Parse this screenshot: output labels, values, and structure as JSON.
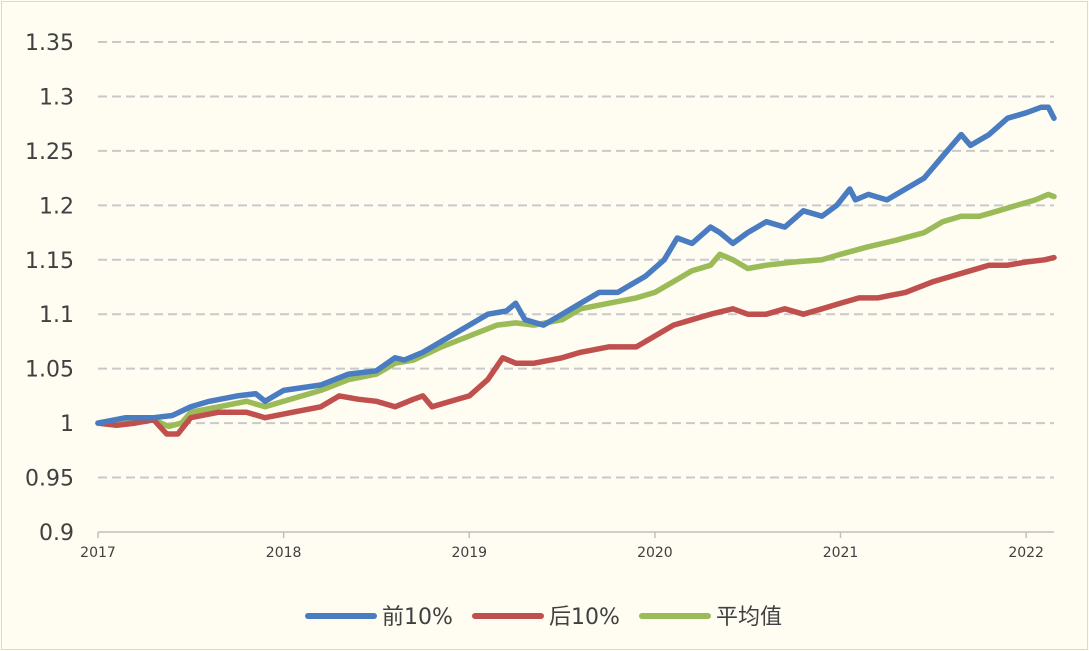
{
  "chart_data": {
    "type": "line",
    "title": "",
    "xlabel": "",
    "ylabel": "",
    "ylim": [
      0.9,
      1.35
    ],
    "yticks": [
      "0.9",
      "0.95",
      "1",
      "1.05",
      "1.1",
      "1.15",
      "1.2",
      "1.25",
      "1.3",
      "1.35"
    ],
    "xlim": [
      2017.0,
      2022.15
    ],
    "xticks": [
      "2017",
      "2018",
      "2019",
      "2020",
      "2021",
      "2022"
    ],
    "grid": "horizontal dashed",
    "legend_position": "bottom",
    "series": [
      {
        "name": "前10%",
        "color": "#4a7cc2",
        "x": [
          2017.0,
          2017.15,
          2017.3,
          2017.4,
          2017.5,
          2017.6,
          2017.75,
          2017.85,
          2017.9,
          2018.0,
          2018.2,
          2018.35,
          2018.5,
          2018.6,
          2018.65,
          2018.75,
          2018.9,
          2019.0,
          2019.1,
          2019.2,
          2019.25,
          2019.3,
          2019.4,
          2019.5,
          2019.6,
          2019.7,
          2019.8,
          2019.95,
          2020.05,
          2020.12,
          2020.2,
          2020.3,
          2020.35,
          2020.42,
          2020.5,
          2020.6,
          2020.7,
          2020.8,
          2020.9,
          2020.98,
          2021.05,
          2021.08,
          2021.15,
          2021.25,
          2021.35,
          2021.45,
          2021.55,
          2021.65,
          2021.7,
          2021.8,
          2021.9,
          2022.0,
          2022.08,
          2022.12,
          2022.15
        ],
        "y": [
          1.0,
          1.005,
          1.005,
          1.007,
          1.015,
          1.02,
          1.025,
          1.027,
          1.02,
          1.03,
          1.035,
          1.045,
          1.048,
          1.06,
          1.058,
          1.065,
          1.08,
          1.09,
          1.1,
          1.103,
          1.11,
          1.095,
          1.09,
          1.1,
          1.11,
          1.12,
          1.12,
          1.135,
          1.15,
          1.17,
          1.165,
          1.18,
          1.175,
          1.165,
          1.175,
          1.185,
          1.18,
          1.195,
          1.19,
          1.2,
          1.215,
          1.205,
          1.21,
          1.205,
          1.215,
          1.225,
          1.245,
          1.265,
          1.255,
          1.265,
          1.28,
          1.285,
          1.29,
          1.29,
          1.28
        ]
      },
      {
        "name": "后10%",
        "color": "#c0504d",
        "x": [
          2017.0,
          2017.1,
          2017.2,
          2017.3,
          2017.37,
          2017.43,
          2017.5,
          2017.65,
          2017.8,
          2017.9,
          2018.05,
          2018.2,
          2018.3,
          2018.4,
          2018.5,
          2018.6,
          2018.7,
          2018.75,
          2018.8,
          2018.9,
          2019.0,
          2019.1,
          2019.18,
          2019.25,
          2019.35,
          2019.5,
          2019.6,
          2019.75,
          2019.9,
          2020.0,
          2020.1,
          2020.2,
          2020.3,
          2020.42,
          2020.5,
          2020.6,
          2020.7,
          2020.8,
          2020.9,
          2021.0,
          2021.1,
          2021.2,
          2021.35,
          2021.5,
          2021.6,
          2021.7,
          2021.8,
          2021.9,
          2022.0,
          2022.1,
          2022.15
        ],
        "y": [
          1.0,
          0.998,
          1.0,
          1.003,
          0.99,
          0.99,
          1.005,
          1.01,
          1.01,
          1.005,
          1.01,
          1.015,
          1.025,
          1.022,
          1.02,
          1.015,
          1.022,
          1.025,
          1.015,
          1.02,
          1.025,
          1.04,
          1.06,
          1.055,
          1.055,
          1.06,
          1.065,
          1.07,
          1.07,
          1.08,
          1.09,
          1.095,
          1.1,
          1.105,
          1.1,
          1.1,
          1.105,
          1.1,
          1.105,
          1.11,
          1.115,
          1.115,
          1.12,
          1.13,
          1.135,
          1.14,
          1.145,
          1.145,
          1.148,
          1.15,
          1.152
        ]
      },
      {
        "name": "平均值",
        "color": "#9bbb59",
        "x": [
          2017.0,
          2017.1,
          2017.2,
          2017.3,
          2017.38,
          2017.45,
          2017.5,
          2017.65,
          2017.8,
          2017.9,
          2018.0,
          2018.2,
          2018.35,
          2018.5,
          2018.6,
          2018.7,
          2018.85,
          2019.0,
          2019.15,
          2019.25,
          2019.35,
          2019.5,
          2019.6,
          2019.75,
          2019.9,
          2020.0,
          2020.1,
          2020.2,
          2020.3,
          2020.35,
          2020.42,
          2020.5,
          2020.6,
          2020.75,
          2020.9,
          2021.0,
          2021.15,
          2021.3,
          2021.45,
          2021.55,
          2021.65,
          2021.75,
          2021.85,
          2021.95,
          2022.05,
          2022.12,
          2022.15
        ],
        "y": [
          1.0,
          1.003,
          1.002,
          1.003,
          0.997,
          1.0,
          1.01,
          1.015,
          1.02,
          1.015,
          1.02,
          1.03,
          1.04,
          1.045,
          1.055,
          1.058,
          1.07,
          1.08,
          1.09,
          1.092,
          1.09,
          1.095,
          1.105,
          1.11,
          1.115,
          1.12,
          1.13,
          1.14,
          1.145,
          1.155,
          1.15,
          1.142,
          1.145,
          1.148,
          1.15,
          1.155,
          1.162,
          1.168,
          1.175,
          1.185,
          1.19,
          1.19,
          1.195,
          1.2,
          1.205,
          1.21,
          1.208
        ]
      }
    ]
  }
}
